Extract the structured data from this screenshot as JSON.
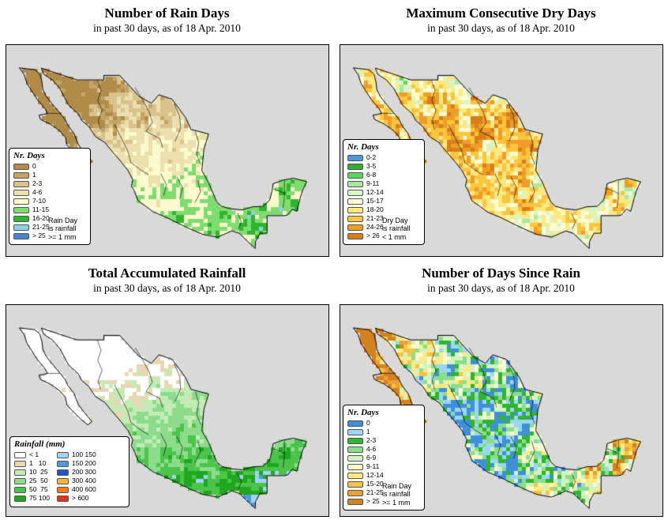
{
  "page": {
    "background": "#ffffff"
  },
  "map": {
    "ocean_color": "#d9d9d9",
    "outline_color": "#000000"
  },
  "panels": [
    {
      "id": "rain-days",
      "title": "Number of Rain Days",
      "subtitle": "in past 30 days, as of  18 Apr. 2010",
      "legend": {
        "title": "Nr. Days",
        "items": [
          {
            "label": "0",
            "color": "#b08c48"
          },
          {
            "label": "1",
            "color": "#c4a466"
          },
          {
            "label": "2-3",
            "color": "#d9c28c"
          },
          {
            "label": "4-6",
            "color": "#ebe0ae"
          },
          {
            "label": "7-10",
            "color": "#fafacd"
          },
          {
            "label": "11-15",
            "color": "#7fdc6f"
          },
          {
            "label": "16-20",
            "color": "#2fb52f"
          },
          {
            "label": "21-25",
            "color": "#8fcdea"
          },
          {
            "label": "> 25",
            "color": "#3f86d4"
          }
        ],
        "note_lines": [
          "Rain Day",
          "is rainfall",
          ">= 1 mm"
        ]
      }
    },
    {
      "id": "max-consecutive-dry-days",
      "title": "Maximum Consecutive Dry Days",
      "subtitle": "in past 30 days, as of  18 Apr. 2010",
      "legend": {
        "title": "Nr. Days",
        "items": [
          {
            "label": "0-2",
            "color": "#4f97dd"
          },
          {
            "label": "3-5",
            "color": "#2fae2f"
          },
          {
            "label": "6-8",
            "color": "#5fd45f"
          },
          {
            "label": "9-11",
            "color": "#a8e8a2"
          },
          {
            "label": "12-14",
            "color": "#d9f5c4"
          },
          {
            "label": "15-17",
            "color": "#fdfcd2"
          },
          {
            "label": "18-20",
            "color": "#ffe87f"
          },
          {
            "label": "21-23",
            "color": "#fbc53e"
          },
          {
            "label": "24-26",
            "color": "#f09d27"
          },
          {
            "label": "> 26",
            "color": "#d87f19"
          }
        ],
        "note_lines": [
          "Dry Day",
          "is rainfall",
          "< 1 mm"
        ]
      }
    },
    {
      "id": "total-accumulated-rainfall",
      "title": "Total Accumulated Rainfall",
      "subtitle": "in past 30 days, as of  18 Apr. 2010",
      "legend": {
        "title": "Rainfall (mm)",
        "columns": [
          [
            {
              "label": "< 1",
              "color": "#ffffff"
            },
            {
              "label": "1   10",
              "color": "#e6d8b4"
            },
            {
              "label": "10  25",
              "color": "#c2ecb4"
            },
            {
              "label": "25  50",
              "color": "#8cdc8c"
            },
            {
              "label": "50  75",
              "color": "#4cc44c"
            },
            {
              "label": "75 100",
              "color": "#1fa81f"
            }
          ],
          [
            {
              "label": "100 150",
              "color": "#9fd4f2"
            },
            {
              "label": "150 200",
              "color": "#4f9add"
            },
            {
              "label": "200 300",
              "color": "#2456c9"
            },
            {
              "label": "300 400",
              "color": "#f5b63e"
            },
            {
              "label": "400 600",
              "color": "#f07d22"
            },
            {
              "label": "> 600",
              "color": "#e8321e"
            }
          ]
        ]
      }
    },
    {
      "id": "days-since-rain",
      "title": "Number of Days Since Rain",
      "subtitle": "in past 30 days, as of  18 Apr. 2010",
      "legend": {
        "title": "Nr. Days",
        "items": [
          {
            "label": "0",
            "color": "#3f8fdd"
          },
          {
            "label": "1",
            "color": "#9bd7f2"
          },
          {
            "label": "2-3",
            "color": "#2fb52f"
          },
          {
            "label": "4-6",
            "color": "#8ade8a"
          },
          {
            "label": "6-9",
            "color": "#d2f2c2"
          },
          {
            "label": "9-11",
            "color": "#fbf9cc"
          },
          {
            "label": "12-14",
            "color": "#ffe982"
          },
          {
            "label": "15-20",
            "color": "#f5c440"
          },
          {
            "label": "21-25",
            "color": "#eda035"
          },
          {
            "label": "> 25",
            "color": "#d4821e"
          }
        ],
        "note_lines": [
          "Rain Day",
          "is rainfall",
          ">= 1 mm"
        ]
      }
    }
  ]
}
